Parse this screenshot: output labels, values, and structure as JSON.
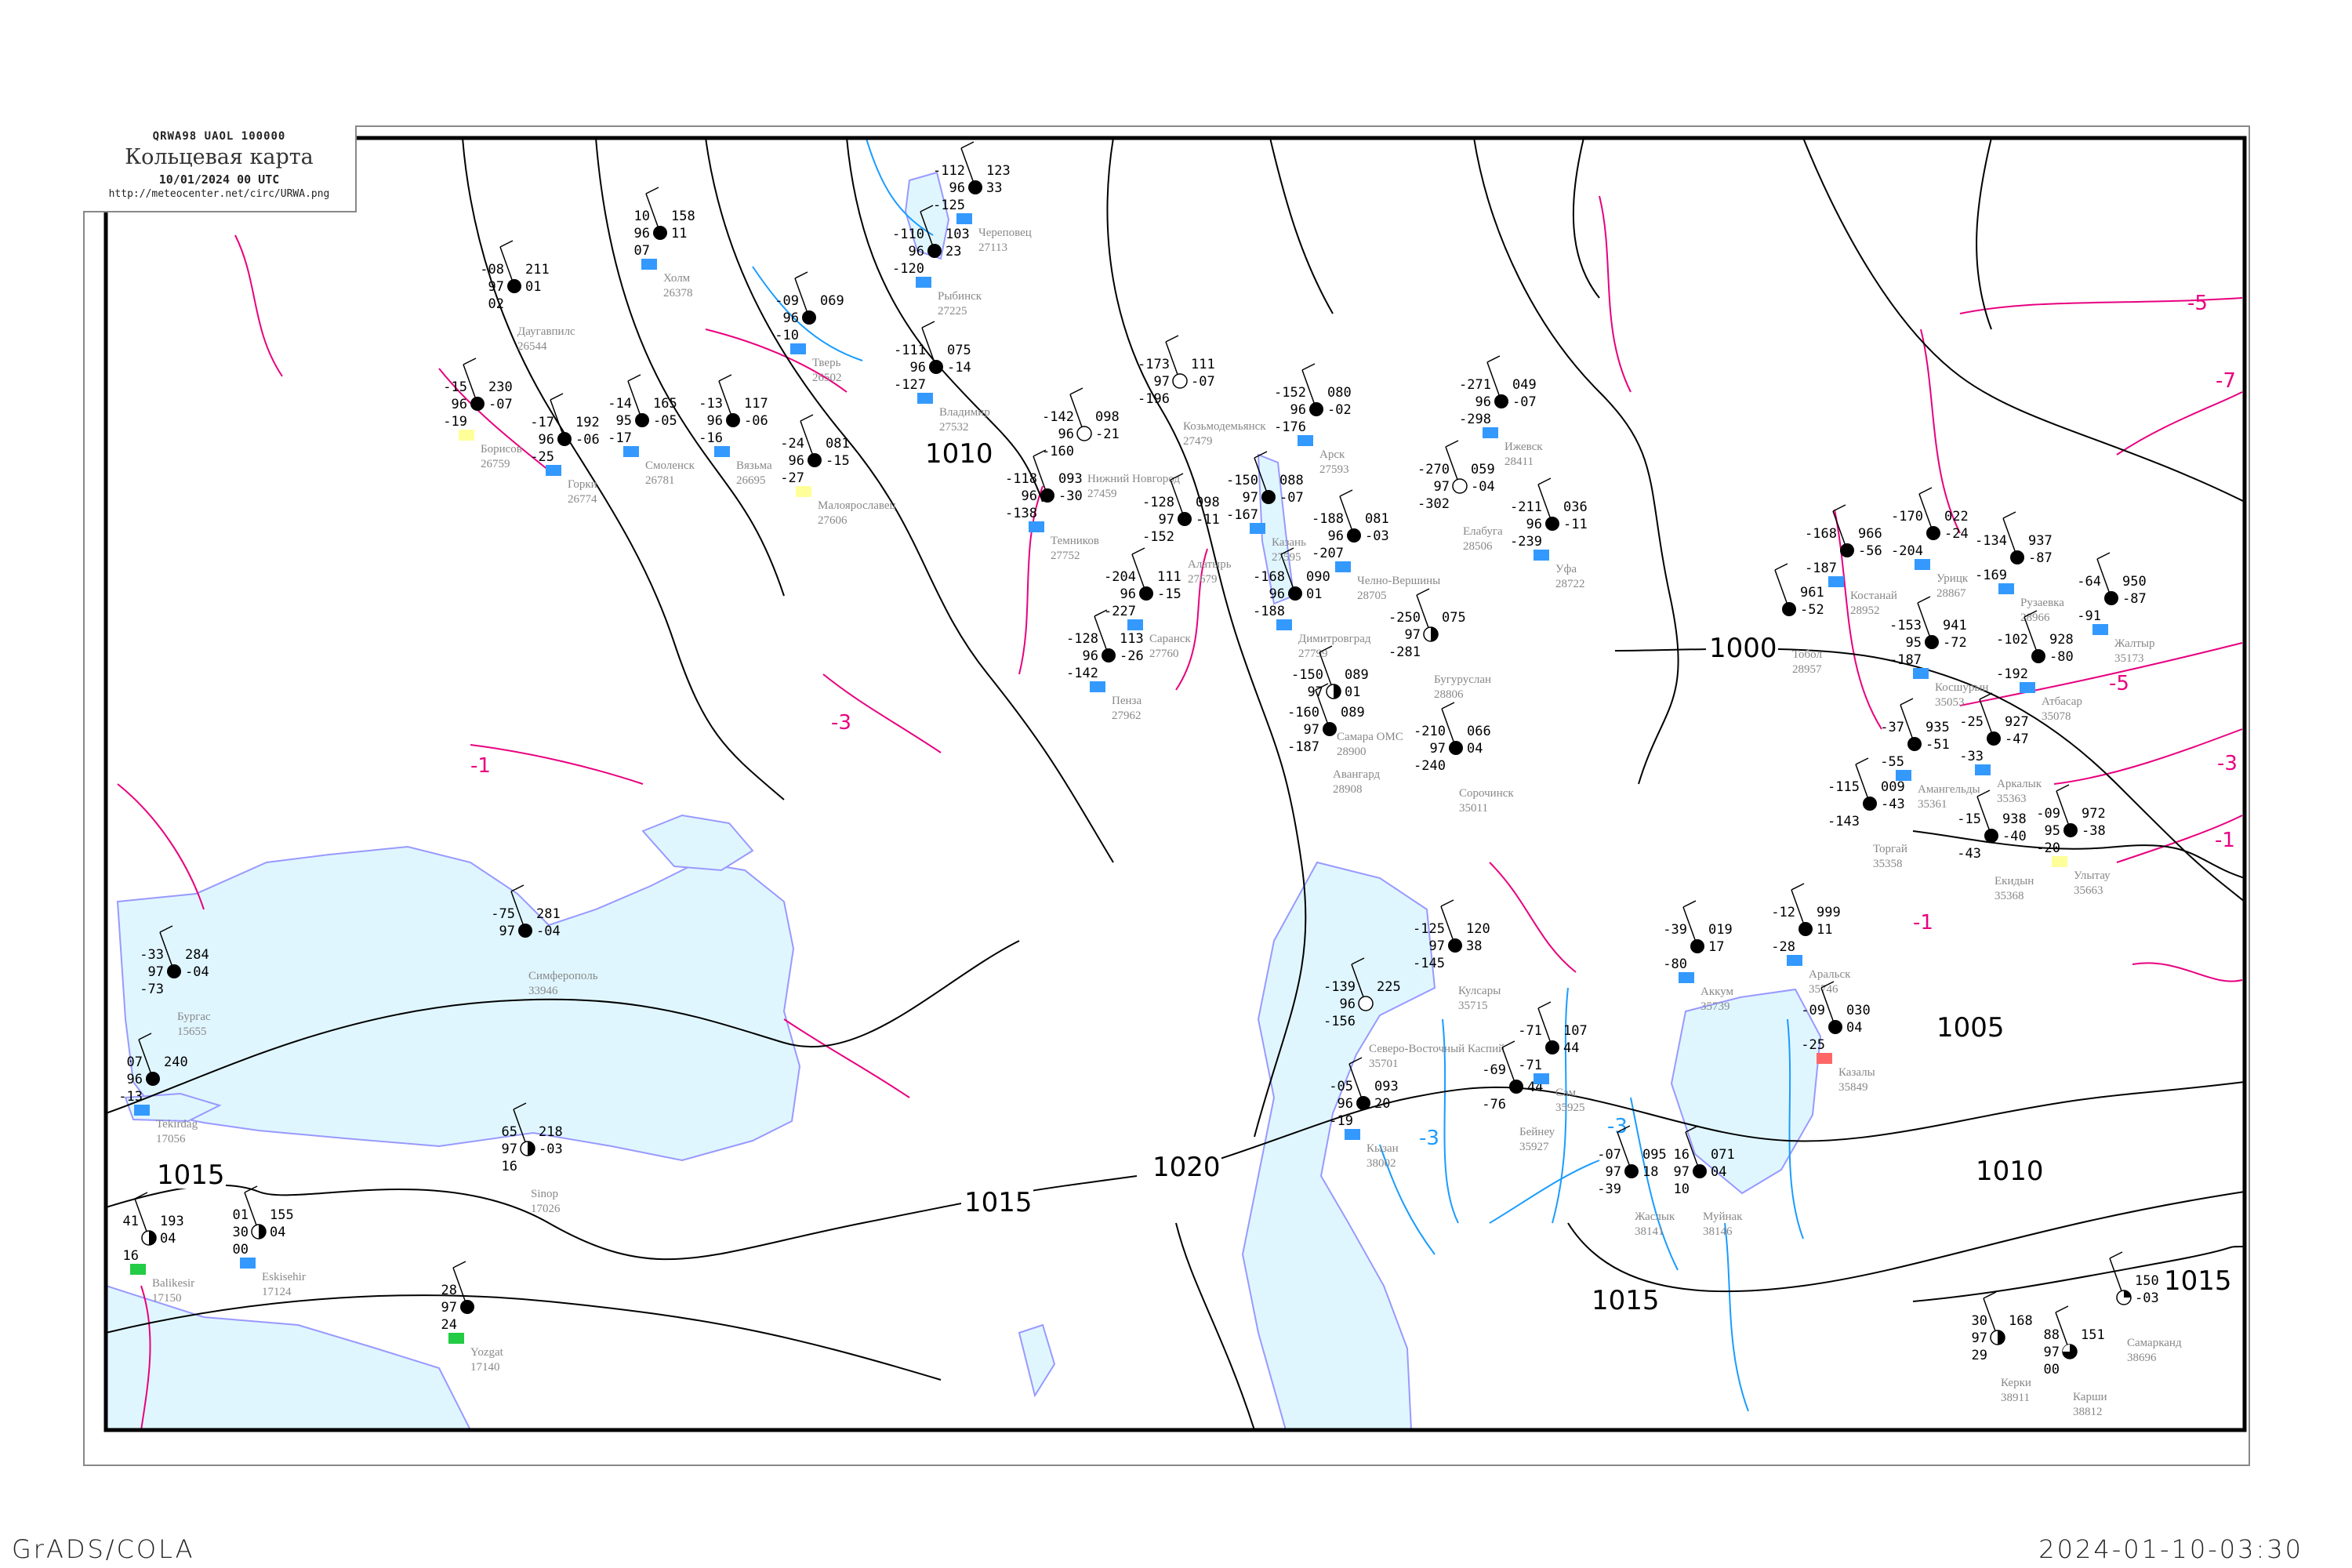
{
  "header": {
    "code": "QRWA98   UAOL   100000",
    "title": "Кольцевая карта",
    "datetime": "10/01/2024 00 UTC",
    "url": "http://meteocenter.net/circ/URWA.png"
  },
  "footer": {
    "left": "GrADS/COLA",
    "right": "2024-01-10-03:30"
  },
  "colors": {
    "water": "#e0f6ff",
    "coastline": "#9999ff",
    "isobar": "#000000",
    "isotherm_negative": "#e8007f",
    "isotherm_blue": "#1a9cff",
    "station_name": "#888888",
    "snow_marker": "#3399ff",
    "rain_marker": "#22cc44",
    "fog_marker": "#ffff99"
  },
  "isobar_labels": [
    "1000",
    "1005",
    "1010",
    "1010",
    "1015",
    "1015",
    "1015",
    "1015",
    "1020"
  ],
  "isotherm_labels": [
    {
      "text": "-1",
      "color": "#e8007f"
    },
    {
      "text": "-3",
      "color": "#e8007f"
    },
    {
      "text": "-5",
      "color": "#e8007f"
    },
    {
      "text": "-5",
      "color": "#e8007f"
    },
    {
      "text": "-7",
      "color": "#e8007f"
    },
    {
      "text": "-3",
      "color": "#e8007f"
    },
    {
      "text": "-1",
      "color": "#e8007f"
    },
    {
      "text": "-1",
      "color": "#e8007f"
    },
    {
      "text": "-3",
      "color": "#1a9cff"
    },
    {
      "text": "-3",
      "color": "#1a9cff"
    }
  ],
  "stations": [
    {
      "name": "Казань",
      "id": "27595",
      "t": "-150",
      "vv": "97",
      "p": "088",
      "tend": "-07",
      "td": "-167",
      "cover": "full",
      "marker": "snow"
    },
    {
      "name": "Арск",
      "id": "27593",
      "t": "-152",
      "vv": "96",
      "p": "080",
      "tend": "-02",
      "td": "-176",
      "cover": "full",
      "marker": "snow"
    },
    {
      "name": "Нижний Новгород",
      "id": "27459",
      "t": "-142",
      "vv": "96",
      "p": "098",
      "tend": "-21",
      "td": "-160",
      "cover": "open"
    },
    {
      "name": "Козьмодемьянск",
      "id": "27479",
      "t": "-173",
      "vv": "97",
      "p": "111",
      "tend": "-07",
      "td": "-196",
      "cover": "open"
    },
    {
      "name": "Алатырь",
      "id": "27679",
      "t": "-128",
      "vv": "97",
      "p": "098",
      "tend": "-11",
      "td": "-152",
      "cover": "full"
    },
    {
      "name": "Темников",
      "id": "27752",
      "t": "-118",
      "vv": "96",
      "p": "093",
      "tend": "-30",
      "td": "-138",
      "cover": "full",
      "marker": "snow"
    },
    {
      "name": "Саранск",
      "id": "27760",
      "t": "-204",
      "vv": "96",
      "p": "111",
      "tend": "-15",
      "td": "-227",
      "cover": "full",
      "marker": "snow"
    },
    {
      "name": "Пенза",
      "id": "27962",
      "t": "-128",
      "vv": "96",
      "p": "113",
      "tend": "-26",
      "td": "-142",
      "cover": "full",
      "marker": "snow"
    },
    {
      "name": "Димитровград",
      "id": "27799",
      "t": "-168",
      "vv": "96",
      "p": "090",
      "tend": "01",
      "td": "-188",
      "cover": "full",
      "marker": "snow"
    },
    {
      "name": "Челно-Вершины",
      "id": "28705",
      "t": "-188",
      "vv": "96",
      "p": "081",
      "tend": "-03",
      "td": "-207",
      "cover": "full",
      "marker": "snow"
    },
    {
      "name": "Бугуруслан",
      "id": "28806",
      "t": "-250",
      "vv": "97",
      "p": "075",
      "td": "-281",
      "cover": "half"
    },
    {
      "name": "Самара ОМС",
      "id": "28900",
      "t": "-150",
      "vv": "97",
      "p": "089",
      "tend": "01",
      "cover": "half"
    },
    {
      "name": "Авангард",
      "id": "28908",
      "t": "-160",
      "vv": "97",
      "p": "089",
      "td": "-187",
      "cover": "full"
    },
    {
      "name": "Сорочинск",
      "id": "35011",
      "t": "-210",
      "vv": "97",
      "p": "066",
      "tend": "04",
      "td": "-240",
      "cover": "full"
    },
    {
      "name": "Ижевск",
      "id": "28411",
      "t": "-271",
      "vv": "96",
      "p": "049",
      "tend": "-07",
      "td": "-298",
      "cover": "full",
      "marker": "snow"
    },
    {
      "name": "Елабуга",
      "id": "28506",
      "t": "-270",
      "vv": "97",
      "p": "059",
      "tend": "-04",
      "td": "-302",
      "cover": "open"
    },
    {
      "name": "Уфа",
      "id": "28722",
      "t": "-211",
      "vv": "96",
      "p": "036",
      "tend": "-11",
      "td": "-239",
      "cover": "full",
      "marker": "snow"
    },
    {
      "name": "Кулсары",
      "id": "35715",
      "t": "-125",
      "vv": "97",
      "p": "120",
      "tend": "38",
      "td": "-145",
      "cover": "full"
    },
    {
      "name": "Северо-Восточный Каспий",
      "id": "35701",
      "t": "-139",
      "vv": "96",
      "p": "225",
      "td": "-156",
      "cover": "open"
    },
    {
      "name": "Бейнеу",
      "id": "35927",
      "t": "-69",
      "tend": "44",
      "td": "-76",
      "cover": "full"
    },
    {
      "name": "Сам",
      "id": "35925",
      "t": "-71",
      "p": "107",
      "tend": "44",
      "td": "-71",
      "cover": "full",
      "marker": "snow"
    },
    {
      "name": "Аральск",
      "id": "35746",
      "t": "-12",
      "p": "999",
      "tend": "11",
      "td": "-28",
      "cover": "full",
      "marker": "snow"
    },
    {
      "name": "Аккум",
      "id": "35739",
      "t": "-39",
      "p": "019",
      "tend": "17",
      "td": "-80",
      "cover": "full",
      "marker": "snow"
    },
    {
      "name": "Казалы",
      "id": "35849",
      "t": "-09",
      "p": "030",
      "tend": "04",
      "td": "-25",
      "cover": "full",
      "marker": "red"
    },
    {
      "name": "Жаслык",
      "id": "38141",
      "t": "-07",
      "vv": "97",
      "p": "095",
      "tend": "18",
      "td": "-39",
      "cover": "full"
    },
    {
      "name": "Муйнак",
      "id": "38146",
      "t": "16",
      "vv": "97",
      "p": "071",
      "tend": "04",
      "td": "10",
      "cover": "full"
    },
    {
      "name": "Кызан",
      "id": "38002",
      "t": "-05",
      "vv": "96",
      "p": "093",
      "tend": "20",
      "td": "-19",
      "cover": "full",
      "marker": "snow"
    },
    {
      "name": "Костанай",
      "id": "28952",
      "t": "-168",
      "p": "966",
      "tend": "-56",
      "td": "-187",
      "cover": "full",
      "marker": "snow"
    },
    {
      "name": "Урицк",
      "id": "28867",
      "t": "-170",
      "p": "022",
      "tend": "-24",
      "td": "-204",
      "cover": "full",
      "marker": "snow"
    },
    {
      "name": "Рузаевка",
      "id": "28966",
      "t": "-134",
      "p": "937",
      "tend": "-87",
      "td": "-169",
      "cover": "full",
      "marker": "snow"
    },
    {
      "name": "Атбасар",
      "id": "35078",
      "t": "-102",
      "p": "928",
      "tend": "-80",
      "td": "-192",
      "cover": "full",
      "marker": "snow"
    },
    {
      "name": "Жалтыр",
      "id": "35173",
      "t": "-64",
      "p": "950",
      "tend": "-87",
      "td": "-91",
      "cover": "full",
      "marker": "snow"
    },
    {
      "name": "Тобол",
      "id": "28957",
      "p": "961",
      "tend": "-52",
      "cover": "full"
    },
    {
      "name": "Косшурын",
      "id": "35053",
      "t": "-153",
      "vv": "95",
      "p": "941",
      "tend": "-72",
      "td": "-187",
      "cover": "full",
      "marker": "snow"
    },
    {
      "name": "Аркалык",
      "id": "35363",
      "t": "-25",
      "p": "927",
      "tend": "-47",
      "td": "-33",
      "cover": "full",
      "marker": "snow"
    },
    {
      "name": "Амангельды",
      "id": "35361",
      "t": "-37",
      "p": "935",
      "tend": "-51",
      "td": "-55",
      "cover": "full",
      "marker": "snow"
    },
    {
      "name": "Екидын",
      "id": "35368",
      "t": "-15",
      "p": "938",
      "tend": "-40",
      "td": "-43",
      "cover": "full"
    },
    {
      "name": "Торгай",
      "id": "35358",
      "t": "-115",
      "p": "009",
      "tend": "-43",
      "td": "-143",
      "cover": "full"
    },
    {
      "name": "Улытау",
      "id": "35663",
      "t": "-09",
      "vv": "95",
      "p": "972",
      "tend": "-38",
      "td": "-20",
      "cover": "full",
      "marker": "fog"
    },
    {
      "name": "Смоленск",
      "id": "26781",
      "t": "-14",
      "vv": "95",
      "p": "165",
      "tend": "-05",
      "td": "-17",
      "cover": "full",
      "marker": "snow"
    },
    {
      "name": "Вязьма",
      "id": "26695",
      "t": "-13",
      "vv": "96",
      "p": "117",
      "tend": "-06",
      "td": "-16",
      "cover": "full",
      "marker": "snow"
    },
    {
      "name": "Тверь",
      "id": "26502",
      "t": "-09",
      "vv": "96",
      "p": "069",
      "td": "-10",
      "cover": "full",
      "marker": "snow"
    },
    {
      "name": "Малоярославец",
      "id": "27606",
      "t": "-24",
      "vv": "96",
      "p": "081",
      "tend": "-15",
      "td": "-27",
      "cover": "full",
      "marker": "fog"
    },
    {
      "name": "Владимир",
      "id": "27532",
      "t": "-111",
      "vv": "96",
      "p": "075",
      "tend": "-14",
      "td": "-127",
      "cover": "full",
      "marker": "snow"
    },
    {
      "name": "Рыбинск",
      "id": "27225",
      "t": "-110",
      "vv": "96",
      "p": "103",
      "tend": "23",
      "td": "-120",
      "cover": "full",
      "marker": "snow"
    },
    {
      "name": "Череповец",
      "id": "27113",
      "t": "-112",
      "vv": "96",
      "p": "123",
      "tend": "33",
      "td": "-125",
      "cover": "full",
      "marker": "snow"
    },
    {
      "name": "Горки",
      "id": "26774",
      "t": "-17",
      "vv": "96",
      "p": "192",
      "tend": "-06",
      "td": "-25",
      "cover": "full",
      "marker": "snow"
    },
    {
      "name": "Борисов",
      "id": "26759",
      "t": "-15",
      "vv": "96",
      "p": "230",
      "tend": "-07",
      "td": "-19",
      "cover": "full",
      "marker": "fog"
    },
    {
      "name": "Холм",
      "id": "26378",
      "t": "10",
      "vv": "96",
      "p": "158",
      "tend": "11",
      "td": "07",
      "cover": "full",
      "marker": "snow"
    },
    {
      "name": "Даугавпилс",
      "id": "26544",
      "t": "-08",
      "vv": "97",
      "p": "211",
      "tend": "01",
      "td": "02",
      "cover": "full"
    },
    {
      "name": "Tekirdag",
      "id": "17056",
      "t": "07",
      "vv": "96",
      "p": "240",
      "td": "-13",
      "cover": "full",
      "marker": "snow"
    },
    {
      "name": "Eskisehir",
      "id": "17124",
      "t": "01",
      "vv": "30",
      "p": "155",
      "tend": "04",
      "td": "00",
      "cover": "half",
      "marker": "snow"
    },
    {
      "name": "Sinop",
      "id": "17026",
      "t": "65",
      "vv": "97",
      "p": "218",
      "tend": "-03",
      "td": "16",
      "cover": "half"
    },
    {
      "name": "Симферополь",
      "id": "33946",
      "t": "-75",
      "vv": "97",
      "p": "281",
      "tend": "-04",
      "cover": "full"
    },
    {
      "name": "Бургас",
      "id": "15655",
      "t": "-33",
      "vv": "97",
      "p": "284",
      "tend": "-04",
      "td": "-73",
      "cover": "full"
    },
    {
      "name": "Yozgat",
      "id": "17140",
      "t": "28",
      "vv": "97",
      "td": "24",
      "cover": "full",
      "marker": "rain"
    },
    {
      "name": "Balikesir",
      "id": "17150",
      "t": "41",
      "p": "193",
      "tend": "04",
      "td": "16",
      "cover": "half",
      "marker": "rain"
    },
    {
      "name": "Карши",
      "id": "38812",
      "t": "88",
      "vv": "97",
      "p": "151",
      "td": "00",
      "cover": "quarter3"
    },
    {
      "name": "Керки",
      "id": "38911",
      "t": "30",
      "vv": "97",
      "p": "168",
      "td": "29",
      "cover": "half"
    },
    {
      "name": "Самарканд",
      "id": "38696",
      "p": "150",
      "tend": "-03",
      "cover": "quarter"
    }
  ]
}
